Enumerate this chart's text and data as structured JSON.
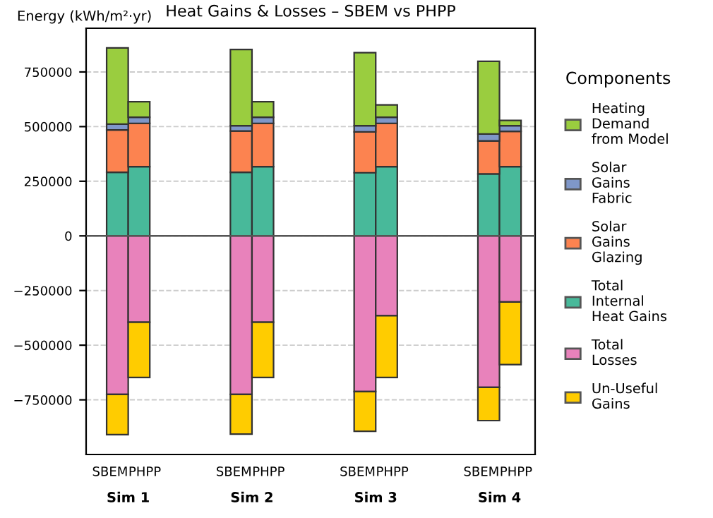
{
  "chart_data": {
    "type": "bar",
    "stacked": true,
    "title": "Heat Gains & Losses – SBEM vs PHPP",
    "ylabel": "Energy (kWh/m²·yr)",
    "legend_title": "Components",
    "legend": "right",
    "categories": [
      "SBEM",
      "PHPP",
      "SBEM",
      "PHPP",
      "SBEM",
      "PHPP",
      "SBEM",
      "PHPP"
    ],
    "annotations": [
      "Sim 1",
      "Sim 2",
      "Sim 3",
      "Sim 4"
    ],
    "series": [
      {
        "name": "Total Internal Heat Gains",
        "color": "#48b99a",
        "values": [
          291000,
          317000,
          291000,
          317000,
          289000,
          317000,
          284000,
          317000
        ]
      },
      {
        "name": "Solar Gains Glazing",
        "color": "#fc8350",
        "values": [
          194000,
          198000,
          189000,
          198000,
          187000,
          198000,
          151000,
          161000
        ]
      },
      {
        "name": "Solar Gains Fabric",
        "color": "#7f97c9",
        "values": [
          26000,
          28000,
          24000,
          28000,
          28000,
          28000,
          31000,
          26000
        ]
      },
      {
        "name": "Heating Demand from Model",
        "color": "#9acd3f",
        "values": [
          349000,
          71000,
          349000,
          71000,
          334000,
          56000,
          333000,
          24000
        ]
      },
      {
        "name": "Total Losses",
        "color": "#e882bb",
        "values": [
          -725000,
          -395000,
          -725000,
          -395000,
          -712000,
          -365000,
          -693000,
          -302000
        ]
      },
      {
        "name": "Un-Useful Gains",
        "color": "#ffcc00",
        "values": [
          -184000,
          -253000,
          -182000,
          -253000,
          -182000,
          -283000,
          -152000,
          -287000
        ]
      }
    ],
    "ylim": [
      -1000000,
      950000
    ],
    "yticks": [
      -750000,
      -500000,
      -250000,
      0,
      250000,
      500000,
      750000
    ],
    "grid": "y",
    "ref_lines": [
      {
        "axis": "y",
        "value": 0,
        "color": "#555555"
      }
    ]
  }
}
